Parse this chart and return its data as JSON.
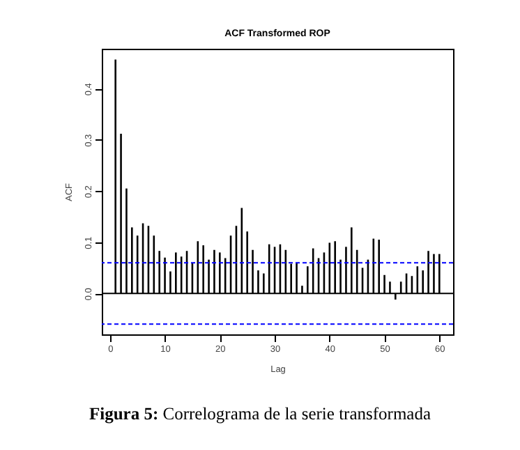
{
  "chart_data": {
    "type": "bar",
    "title": "ACF Transformed ROP",
    "xlabel": "Lag",
    "ylabel": "ACF",
    "x": [
      1,
      2,
      3,
      4,
      5,
      6,
      7,
      8,
      9,
      10,
      11,
      12,
      13,
      14,
      15,
      16,
      17,
      18,
      19,
      20,
      21,
      22,
      23,
      24,
      25,
      26,
      27,
      28,
      29,
      30,
      31,
      32,
      33,
      34,
      35,
      36,
      37,
      38,
      39,
      40,
      41,
      42,
      43,
      44,
      45,
      46,
      47,
      48,
      49,
      50,
      51,
      52,
      53,
      54,
      55,
      56,
      57,
      58,
      59,
      60
    ],
    "series": [
      {
        "color": "#000000",
        "values": [
          0.457,
          0.312,
          0.205,
          0.129,
          0.113,
          0.137,
          0.132,
          0.113,
          0.083,
          0.07,
          0.043,
          0.08,
          0.072,
          0.083,
          0.06,
          0.102,
          0.094,
          0.066,
          0.085,
          0.08,
          0.069,
          0.113,
          0.132,
          0.167,
          0.121,
          0.085,
          0.045,
          0.039,
          0.096,
          0.091,
          0.096,
          0.085,
          0.058,
          0.06,
          0.015,
          0.053,
          0.088,
          0.069,
          0.08,
          0.099,
          0.102,
          0.066,
          0.091,
          0.129,
          0.085,
          0.05,
          0.066,
          0.107,
          0.105,
          0.036,
          0.023,
          -0.012,
          0.023,
          0.039,
          0.034,
          0.053,
          0.045,
          0.083,
          0.077,
          0.077
        ]
      }
    ],
    "xlim": [
      -1.5,
      62.5
    ],
    "xticks": [
      0,
      10,
      20,
      30,
      40,
      50,
      60
    ],
    "ylim": [
      -0.08,
      0.478
    ],
    "yticks": [
      {
        "value": 0,
        "label": "0.0"
      },
      0.1,
      0.2,
      0.3,
      0.4
    ],
    "ref_lines": [
      {
        "axis": "y",
        "value": 0,
        "color": "#000000",
        "line_style": "solid"
      },
      {
        "axis": "y",
        "value": 0.06,
        "color": "#0000ff",
        "line_style": "dashed"
      },
      {
        "axis": "y",
        "value": -0.06,
        "color": "#0000ff",
        "line_style": "dashed"
      }
    ],
    "grid": false,
    "legend": false,
    "annotations": [
      "Figura 5: Correlograma de la serie transformada"
    ]
  }
}
